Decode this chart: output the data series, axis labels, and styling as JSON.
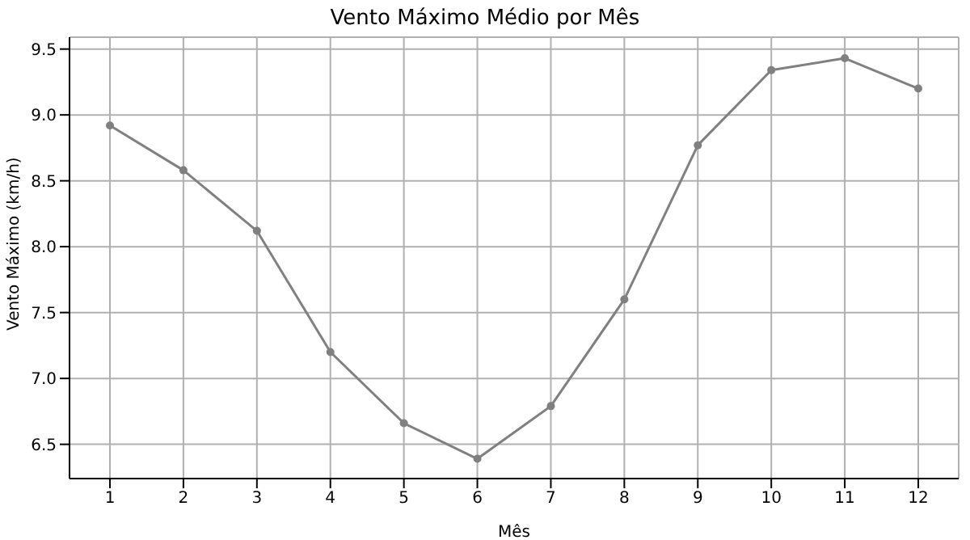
{
  "chart_data": {
    "type": "line",
    "title": "Vento Máximo Médio por Mês",
    "xlabel": "Mês",
    "ylabel": "Vento Máximo (km/h)",
    "x": [
      1,
      2,
      3,
      4,
      5,
      6,
      7,
      8,
      9,
      10,
      11,
      12
    ],
    "series": [
      {
        "color": "#808080",
        "values": [
          8.92,
          8.58,
          8.12,
          7.2,
          6.66,
          6.39,
          6.79,
          7.6,
          8.77,
          9.34,
          9.43,
          9.2
        ]
      }
    ],
    "xlim": [
      0.45,
      12.55
    ],
    "xticks": [
      1,
      2,
      3,
      4,
      5,
      6,
      7,
      8,
      9,
      10,
      11,
      12
    ],
    "ylim": [
      6.24,
      9.59
    ],
    "yticks": [
      {
        "value": 6.5,
        "label": "6.5"
      },
      {
        "value": 7,
        "label": "7.0"
      },
      {
        "value": 7.5,
        "label": "7.5"
      },
      {
        "value": 8,
        "label": "8.0"
      },
      {
        "value": 8.5,
        "label": "8.5"
      },
      {
        "value": 9,
        "label": "9.0"
      },
      {
        "value": 9.5,
        "label": "9.5"
      }
    ],
    "grid": true,
    "marker": "circle",
    "line_style": "solid"
  }
}
